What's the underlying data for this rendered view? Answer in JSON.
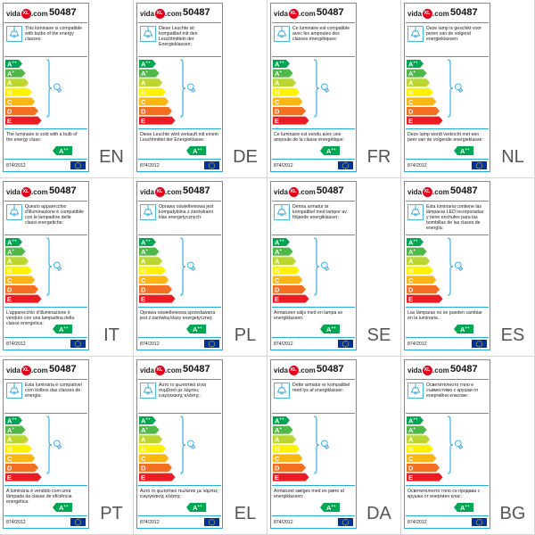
{
  "brand": {
    "prefix": "vida",
    "badge": "XL",
    "suffix": ".com"
  },
  "model": "50487",
  "regulation": "874/2012",
  "sold_class": {
    "letter": "A",
    "sup": "++"
  },
  "energy_classes": [
    {
      "letter": "A",
      "sup": "++",
      "color": "#00a651"
    },
    {
      "letter": "A",
      "sup": "+",
      "color": "#50b848"
    },
    {
      "letter": "A",
      "sup": "",
      "color": "#bcd531"
    },
    {
      "letter": "B",
      "sup": "",
      "color": "#fff200"
    },
    {
      "letter": "C",
      "sup": "",
      "color": "#fbb614"
    },
    {
      "letter": "D",
      "sup": "",
      "color": "#f36f21"
    },
    {
      "letter": "E",
      "sup": "",
      "color": "#ed1c24"
    }
  ],
  "colors": {
    "frame": "#27a9e1",
    "badge": "#00a651",
    "eu_blue": "#003399",
    "eu_star": "#ffcc00",
    "brand_red": "#e2001a"
  },
  "icons": {
    "info": "pendant-lamp-icon",
    "scale": "bulb-icon",
    "bracket": "bracket-icon",
    "footer": "eu-flag-icon"
  },
  "labels": [
    {
      "lang": "EN",
      "compat_text": "This luminaire is compatible with bulbs of the energy classes:",
      "sold_text": "The luminaire is sold with a bulb of the energy class:"
    },
    {
      "lang": "DE",
      "compat_text": "Diese Leuchte ist kompatibel mit den Leuchtmitteln der Energieklassen:",
      "sold_text": "Diese Leuchte wird verkauft mit einem Leuchtmittel der Energieklasse:"
    },
    {
      "lang": "FR",
      "compat_text": "Ce luminaire est compatible avec les ampoules des classes énergétiques:",
      "sold_text": "Ce luminaire est vendu avec une ampoule de la classe énergétique:"
    },
    {
      "lang": "NL",
      "compat_text": "Deze lamp is geschikt voor peren van de volgend energieklassen:",
      "sold_text": "Deze lamp wordt verkocht met een peer van de volgende energieklasse:"
    },
    {
      "lang": "IT",
      "compat_text": "Questo apparecchio d'illuminazione è compatibile con le lampadine delle classi energetiche:",
      "sold_text": "L'apparecchio d'illuminazione è venduto con una lampadina della classe energetica:"
    },
    {
      "lang": "PL",
      "compat_text": "Oprawa oświetleniowa jest kompatybilna z żarówkami klas energetycznych:",
      "sold_text": "Oprawa oświetleniowa sprzedawana jest z żarówką klasy energetycznej:"
    },
    {
      "lang": "SE",
      "compat_text": "Denna armatur är kompatibel med lampor av följande energiklasser:",
      "sold_text": "Armaturen säljs med en lampa av energiklassen:"
    },
    {
      "lang": "ES",
      "compat_text": "Esta luminaria contiene las lámparas LED incorporadas y tiene enchufes para las bombillas de las clases de energía:",
      "sold_text": "Las lámparas no se pueden cambiar en la luminaria."
    },
    {
      "lang": "PT",
      "compat_text": "Esta luminária é compatível com bolbos das classes de energia:",
      "sold_text": "A luminária é vendido com uma lâmpada da classe de eficiência energética:"
    },
    {
      "lang": "EL",
      "compat_text": "Αυτό το φωτιστικό είναι συμβατό με λάμπες ενεργειακής κλάσης:",
      "sold_text": "Αυτό το φωτιστικό πωλείται με λάμπες ενεργειακής κλάσης:"
    },
    {
      "lang": "DA",
      "compat_text": "Dette armatur er kompatibel med lys af energiklasser:",
      "sold_text": "Armaturet sælges med en pære af energiklassen:"
    },
    {
      "lang": "BG",
      "compat_text": "Осветителното тяло е съвместимо с крушки от енергийни класове:",
      "sold_text": "Осветителното тяло се продава с крушка от енергиен клас:"
    }
  ]
}
